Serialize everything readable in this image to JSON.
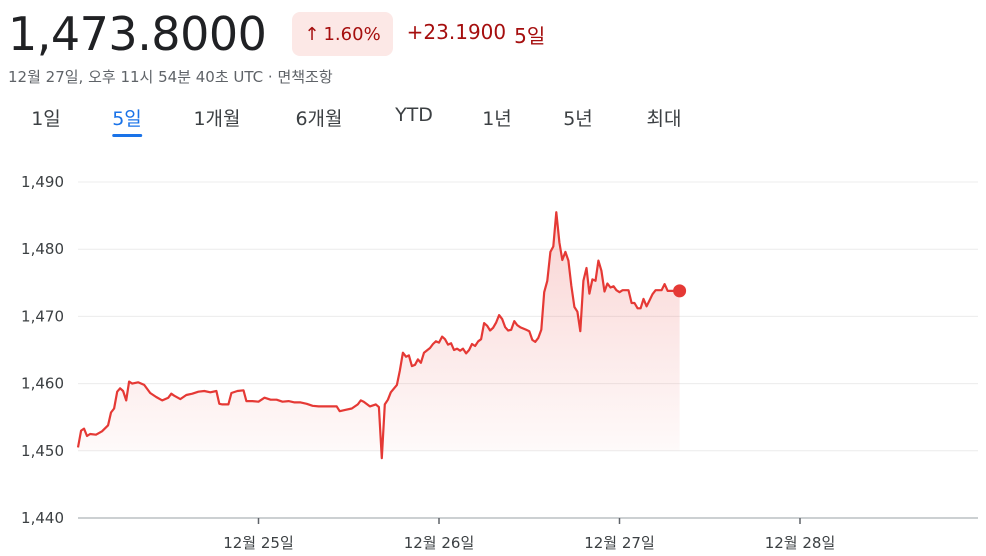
{
  "header": {
    "price": "1,473.8000",
    "change_percent": "1.60%",
    "change_value": "+23.1900",
    "change_period": "5일",
    "timestamp": "12월 27일, 오후 11시 54분 40초 UTC · 면책조항"
  },
  "tabs": [
    {
      "label": "1일",
      "active": false
    },
    {
      "label": "5일",
      "active": true
    },
    {
      "label": "1개월",
      "active": false
    },
    {
      "label": "6개월",
      "active": false
    },
    {
      "label": "YTD",
      "active": false
    },
    {
      "label": "1년",
      "active": false
    },
    {
      "label": "5년",
      "active": false
    },
    {
      "label": "최대",
      "active": false
    }
  ],
  "colors": {
    "line": "#e53935",
    "badge_bg": "#fce8e6",
    "negative_text": "#a50e0e",
    "active_tab": "#1a73e8"
  },
  "chart_data": {
    "type": "area",
    "ylim": [
      1440,
      1490
    ],
    "yticks": [
      1490,
      1480,
      1470,
      1460,
      1450,
      1440
    ],
    "ytick_labels": [
      "1,490",
      "1,480",
      "1,470",
      "1,460",
      "1,450",
      "1,440"
    ],
    "xlim": [
      0,
      5
    ],
    "xticks": [
      1,
      2,
      3,
      4
    ],
    "xtick_labels": [
      "12월 25일",
      "12월 26일",
      "12월 27일",
      "12월 28일"
    ],
    "grid": true,
    "series": [
      {
        "values": [
          [
            0.0,
            1450.5
          ],
          [
            0.017,
            1453.0
          ],
          [
            0.033,
            1453.3
          ],
          [
            0.05,
            1452.2
          ],
          [
            0.067,
            1452.5
          ],
          [
            0.1,
            1452.4
          ],
          [
            0.133,
            1452.9
          ],
          [
            0.167,
            1453.8
          ],
          [
            0.183,
            1455.7
          ],
          [
            0.2,
            1456.3
          ],
          [
            0.217,
            1458.8
          ],
          [
            0.233,
            1459.3
          ],
          [
            0.25,
            1458.9
          ],
          [
            0.267,
            1457.5
          ],
          [
            0.283,
            1460.3
          ],
          [
            0.3,
            1460.0
          ],
          [
            0.333,
            1460.2
          ],
          [
            0.367,
            1459.8
          ],
          [
            0.4,
            1458.6
          ],
          [
            0.433,
            1458.0
          ],
          [
            0.467,
            1457.5
          ],
          [
            0.5,
            1457.9
          ],
          [
            0.517,
            1458.5
          ],
          [
            0.533,
            1458.2
          ],
          [
            0.567,
            1457.7
          ],
          [
            0.6,
            1458.3
          ],
          [
            0.633,
            1458.5
          ],
          [
            0.667,
            1458.8
          ],
          [
            0.7,
            1458.9
          ],
          [
            0.733,
            1458.7
          ],
          [
            0.767,
            1458.9
          ],
          [
            0.783,
            1457.0
          ],
          [
            0.8,
            1456.9
          ],
          [
            0.833,
            1456.9
          ],
          [
            0.85,
            1458.6
          ],
          [
            0.883,
            1458.9
          ],
          [
            0.917,
            1459.0
          ],
          [
            0.933,
            1457.4
          ],
          [
            0.967,
            1457.4
          ],
          [
            1.0,
            1457.3
          ],
          [
            1.033,
            1457.9
          ],
          [
            1.067,
            1457.6
          ],
          [
            1.1,
            1457.6
          ],
          [
            1.133,
            1457.3
          ],
          [
            1.167,
            1457.4
          ],
          [
            1.2,
            1457.2
          ],
          [
            1.233,
            1457.2
          ],
          [
            1.267,
            1457.0
          ],
          [
            1.3,
            1456.7
          ],
          [
            1.333,
            1456.6
          ],
          [
            1.367,
            1456.6
          ],
          [
            1.4,
            1456.6
          ],
          [
            1.433,
            1456.6
          ],
          [
            1.45,
            1455.9
          ],
          [
            1.483,
            1456.1
          ],
          [
            1.517,
            1456.3
          ],
          [
            1.55,
            1456.9
          ],
          [
            1.567,
            1457.5
          ],
          [
            1.583,
            1457.3
          ],
          [
            1.617,
            1456.6
          ],
          [
            1.65,
            1456.9
          ],
          [
            1.667,
            1456.5
          ],
          [
            1.683,
            1448.9
          ],
          [
            1.7,
            1456.9
          ],
          [
            1.717,
            1457.6
          ],
          [
            1.733,
            1458.7
          ],
          [
            1.767,
            1459.8
          ],
          [
            1.783,
            1461.9
          ],
          [
            1.8,
            1464.6
          ],
          [
            1.817,
            1464.0
          ],
          [
            1.833,
            1464.2
          ],
          [
            1.85,
            1462.6
          ],
          [
            1.867,
            1462.8
          ],
          [
            1.883,
            1463.6
          ],
          [
            1.9,
            1463.1
          ],
          [
            1.917,
            1464.6
          ],
          [
            1.95,
            1465.3
          ],
          [
            1.967,
            1465.9
          ],
          [
            1.983,
            1466.3
          ],
          [
            2.0,
            1466.1
          ],
          [
            2.017,
            1467.0
          ],
          [
            2.033,
            1466.6
          ],
          [
            2.05,
            1465.8
          ],
          [
            2.067,
            1466.0
          ],
          [
            2.083,
            1465.0
          ],
          [
            2.1,
            1465.2
          ],
          [
            2.117,
            1464.9
          ],
          [
            2.133,
            1465.2
          ],
          [
            2.15,
            1464.5
          ],
          [
            2.167,
            1465.0
          ],
          [
            2.183,
            1465.9
          ],
          [
            2.2,
            1465.6
          ],
          [
            2.217,
            1466.3
          ],
          [
            2.233,
            1466.6
          ],
          [
            2.25,
            1469.0
          ],
          [
            2.267,
            1468.6
          ],
          [
            2.283,
            1467.9
          ],
          [
            2.3,
            1468.3
          ],
          [
            2.317,
            1469.1
          ],
          [
            2.333,
            1470.2
          ],
          [
            2.35,
            1469.6
          ],
          [
            2.367,
            1468.4
          ],
          [
            2.383,
            1467.9
          ],
          [
            2.4,
            1468.0
          ],
          [
            2.417,
            1469.3
          ],
          [
            2.433,
            1468.7
          ],
          [
            2.45,
            1468.4
          ],
          [
            2.483,
            1468.0
          ],
          [
            2.5,
            1467.8
          ],
          [
            2.517,
            1466.5
          ],
          [
            2.533,
            1466.2
          ],
          [
            2.55,
            1466.8
          ],
          [
            2.567,
            1468.0
          ],
          [
            2.583,
            1473.6
          ],
          [
            2.6,
            1475.3
          ],
          [
            2.617,
            1479.6
          ],
          [
            2.633,
            1480.4
          ],
          [
            2.65,
            1485.5
          ],
          [
            2.667,
            1481.0
          ],
          [
            2.683,
            1478.4
          ],
          [
            2.7,
            1479.6
          ],
          [
            2.717,
            1478.3
          ],
          [
            2.733,
            1474.6
          ],
          [
            2.75,
            1471.4
          ],
          [
            2.767,
            1470.7
          ],
          [
            2.783,
            1467.8
          ],
          [
            2.8,
            1475.3
          ],
          [
            2.817,
            1477.2
          ],
          [
            2.833,
            1473.4
          ],
          [
            2.85,
            1475.5
          ],
          [
            2.867,
            1475.3
          ],
          [
            2.883,
            1478.3
          ],
          [
            2.9,
            1476.8
          ],
          [
            2.917,
            1473.7
          ],
          [
            2.933,
            1474.9
          ],
          [
            2.95,
            1474.3
          ],
          [
            2.967,
            1474.5
          ],
          [
            2.983,
            1473.9
          ],
          [
            3.0,
            1473.6
          ],
          [
            3.017,
            1473.9
          ],
          [
            3.05,
            1473.9
          ],
          [
            3.067,
            1472.0
          ],
          [
            3.083,
            1472.0
          ],
          [
            3.1,
            1471.2
          ],
          [
            3.117,
            1471.2
          ],
          [
            3.133,
            1472.6
          ],
          [
            3.15,
            1471.5
          ],
          [
            3.167,
            1472.4
          ],
          [
            3.183,
            1473.3
          ],
          [
            3.2,
            1473.9
          ],
          [
            3.233,
            1473.9
          ],
          [
            3.25,
            1474.8
          ],
          [
            3.267,
            1473.8
          ],
          [
            3.3,
            1473.8
          ],
          [
            3.333,
            1473.8
          ]
        ]
      }
    ]
  }
}
